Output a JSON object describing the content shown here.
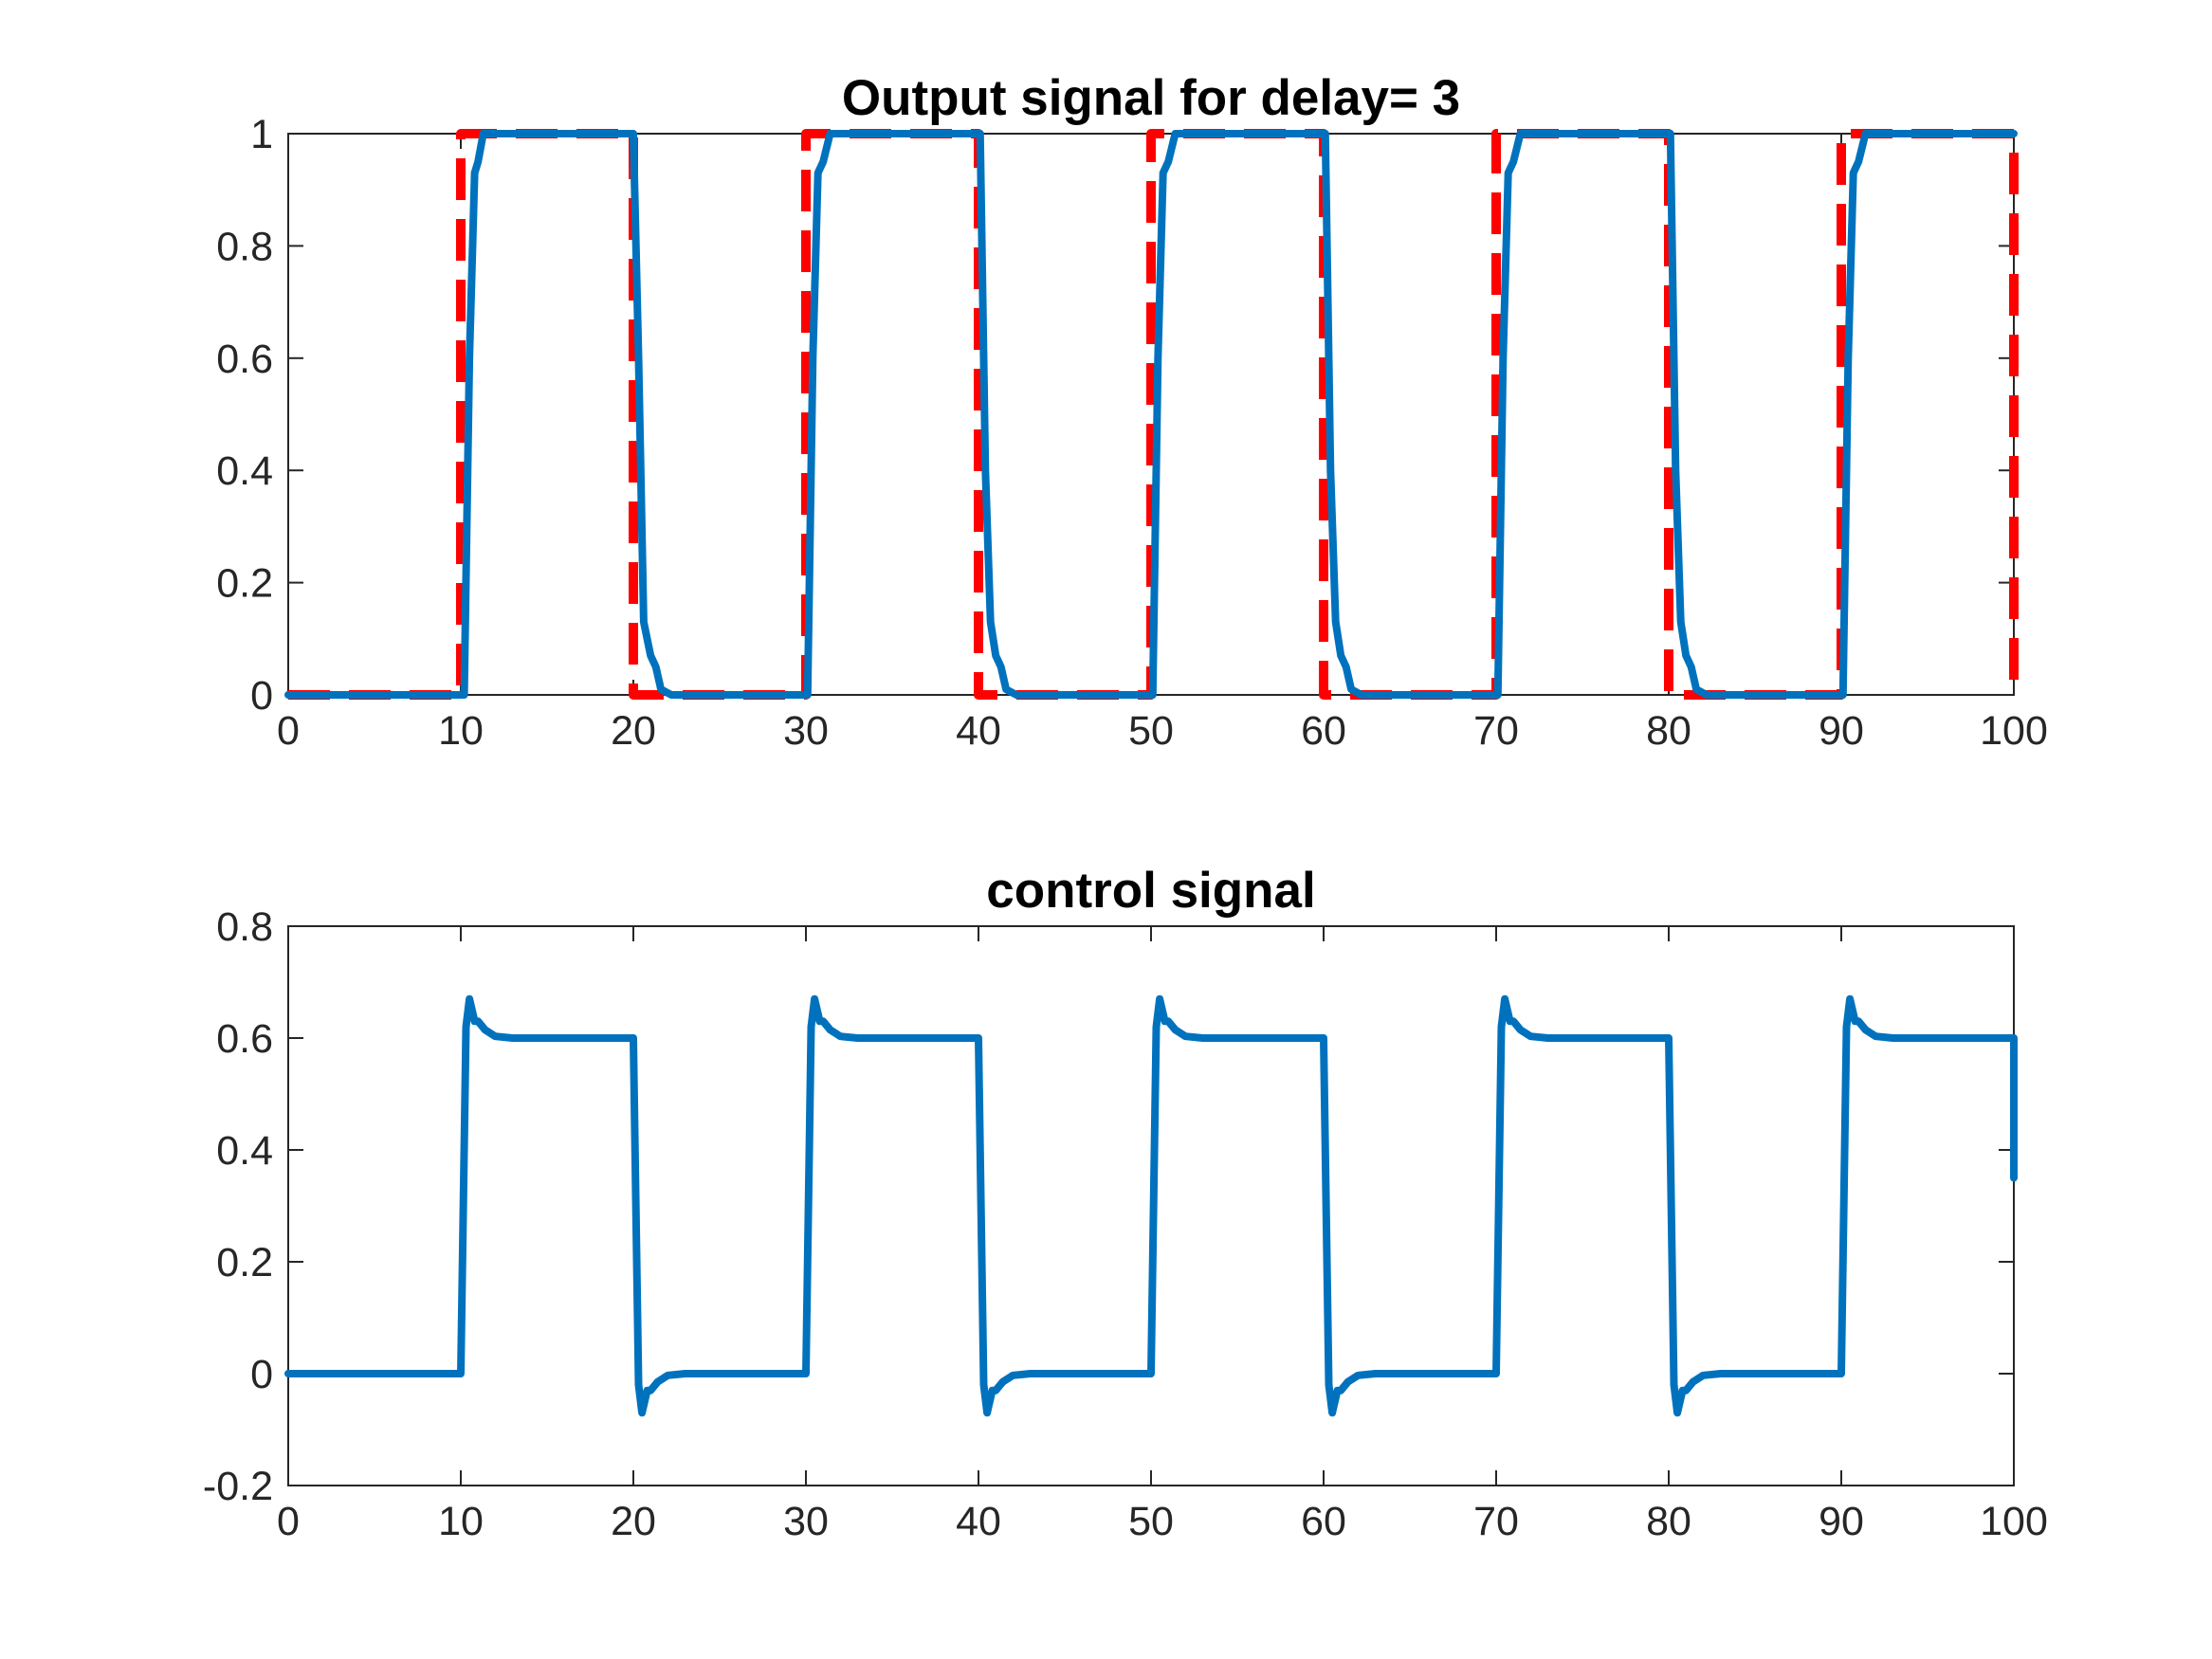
{
  "chart_data": [
    {
      "type": "line",
      "title": "Output signal for delay= 3",
      "xlabel": "",
      "ylabel": "",
      "xlim": [
        0,
        100
      ],
      "ylim": [
        0,
        1
      ],
      "xticks": [
        0,
        10,
        20,
        30,
        40,
        50,
        60,
        70,
        80,
        90,
        100
      ],
      "xtick_labels": [
        "0",
        "10",
        "20",
        "30",
        "40",
        "50",
        "60",
        "70",
        "80",
        "90",
        "100"
      ],
      "yticks": [
        0,
        0.2,
        0.4,
        0.6,
        0.8,
        1
      ],
      "ytick_labels": [
        "0",
        "0.2",
        "0.4",
        "0.6",
        "0.8",
        "1"
      ],
      "grid": false,
      "series": [
        {
          "style": "dashed",
          "color": "#ff0000",
          "x": [
            0,
            10,
            10,
            20,
            20,
            30,
            30,
            40,
            40,
            50,
            50,
            60,
            60,
            70,
            70,
            80,
            80,
            90,
            90,
            100,
            100
          ],
          "values": [
            0,
            0,
            1,
            1,
            0,
            0,
            1,
            1,
            0,
            0,
            1,
            1,
            0,
            0,
            1,
            1,
            0,
            0,
            1,
            1,
            0
          ]
        },
        {
          "style": "solid",
          "color": "#0072bd",
          "x": [
            0,
            10.2,
            10.5,
            10.8,
            11.0,
            11.3,
            11.7,
            12.2,
            20.0,
            20.3,
            20.6,
            21.0,
            21.3,
            21.6,
            22.2,
            30.1,
            30.4,
            30.7,
            31.0,
            31.4,
            32.2,
            40.1,
            40.4,
            40.7,
            41.0,
            41.3,
            41.6,
            42.2,
            50.1,
            50.4,
            50.7,
            51.0,
            51.4,
            52.2,
            60.1,
            60.4,
            60.7,
            61.0,
            61.3,
            61.6,
            62.2,
            70.1,
            70.4,
            70.7,
            71.0,
            71.4,
            72.2,
            80.1,
            80.4,
            80.7,
            81.0,
            81.3,
            81.6,
            82.2,
            90.1,
            90.4,
            90.7,
            91.0,
            91.4,
            92.2,
            100
          ],
          "values": [
            0,
            0,
            0.6,
            0.93,
            0.95,
            1.0,
            1.0,
            1.0,
            1.0,
            0.6,
            0.13,
            0.07,
            0.05,
            0.01,
            0,
            0,
            0.6,
            0.93,
            0.95,
            1.0,
            1.0,
            1.0,
            0.4,
            0.13,
            0.07,
            0.05,
            0.01,
            0,
            0,
            0.6,
            0.93,
            0.95,
            1.0,
            1.0,
            1.0,
            0.4,
            0.13,
            0.07,
            0.05,
            0.01,
            0,
            0,
            0.6,
            0.93,
            0.95,
            1.0,
            1.0,
            1.0,
            0.4,
            0.13,
            0.07,
            0.05,
            0.01,
            0,
            0,
            0.6,
            0.93,
            0.95,
            1.0,
            1.0,
            1.0
          ]
        }
      ]
    },
    {
      "type": "line",
      "title": "control signal",
      "xlabel": "",
      "ylabel": "",
      "xlim": [
        0,
        100
      ],
      "ylim": [
        -0.2,
        0.8
      ],
      "xticks": [
        0,
        10,
        20,
        30,
        40,
        50,
        60,
        70,
        80,
        90,
        100
      ],
      "xtick_labels": [
        "0",
        "10",
        "20",
        "30",
        "40",
        "50",
        "60",
        "70",
        "80",
        "90",
        "100"
      ],
      "yticks": [
        -0.2,
        0,
        0.2,
        0.4,
        0.6,
        0.8
      ],
      "ytick_labels": [
        "-0.2",
        "0",
        "0.2",
        "0.4",
        "0.6",
        "0.8"
      ],
      "grid": false,
      "series": [
        {
          "style": "solid",
          "color": "#0072bd",
          "x": [
            0,
            10.0,
            10.3,
            10.5,
            10.8,
            11.0,
            11.4,
            12.0,
            13.0,
            20.0,
            20.3,
            20.5,
            20.8,
            21.0,
            21.4,
            22.0,
            23.0,
            30.0,
            30.3,
            30.5,
            30.8,
            31.0,
            31.4,
            32.0,
            33.0,
            40.0,
            40.3,
            40.5,
            40.8,
            41.0,
            41.4,
            42.0,
            43.0,
            50.0,
            50.3,
            50.5,
            50.8,
            51.0,
            51.4,
            52.0,
            53.0,
            60.0,
            60.3,
            60.5,
            60.8,
            61.0,
            61.4,
            62.0,
            63.0,
            70.0,
            70.3,
            70.5,
            70.8,
            71.0,
            71.4,
            72.0,
            73.0,
            80.0,
            80.3,
            80.5,
            80.8,
            81.0,
            81.4,
            82.0,
            83.0,
            90.0,
            90.3,
            90.5,
            90.8,
            91.0,
            91.4,
            92.0,
            93.0,
            100.0,
            100.0
          ],
          "values": [
            0,
            0,
            0.62,
            0.67,
            0.63,
            0.63,
            0.615,
            0.603,
            0.6,
            0.6,
            -0.02,
            -0.07,
            -0.03,
            -0.03,
            -0.015,
            -0.003,
            0,
            0,
            0.62,
            0.67,
            0.63,
            0.63,
            0.615,
            0.603,
            0.6,
            0.6,
            -0.02,
            -0.07,
            -0.03,
            -0.03,
            -0.015,
            -0.003,
            0,
            0,
            0.62,
            0.67,
            0.63,
            0.63,
            0.615,
            0.603,
            0.6,
            0.6,
            -0.02,
            -0.07,
            -0.03,
            -0.03,
            -0.015,
            -0.003,
            0,
            0,
            0.62,
            0.67,
            0.63,
            0.63,
            0.615,
            0.603,
            0.6,
            0.6,
            -0.02,
            -0.07,
            -0.03,
            -0.03,
            -0.015,
            -0.003,
            0,
            0,
            0.62,
            0.67,
            0.63,
            0.63,
            0.615,
            0.603,
            0.6,
            0.6,
            0.35
          ]
        }
      ]
    }
  ]
}
